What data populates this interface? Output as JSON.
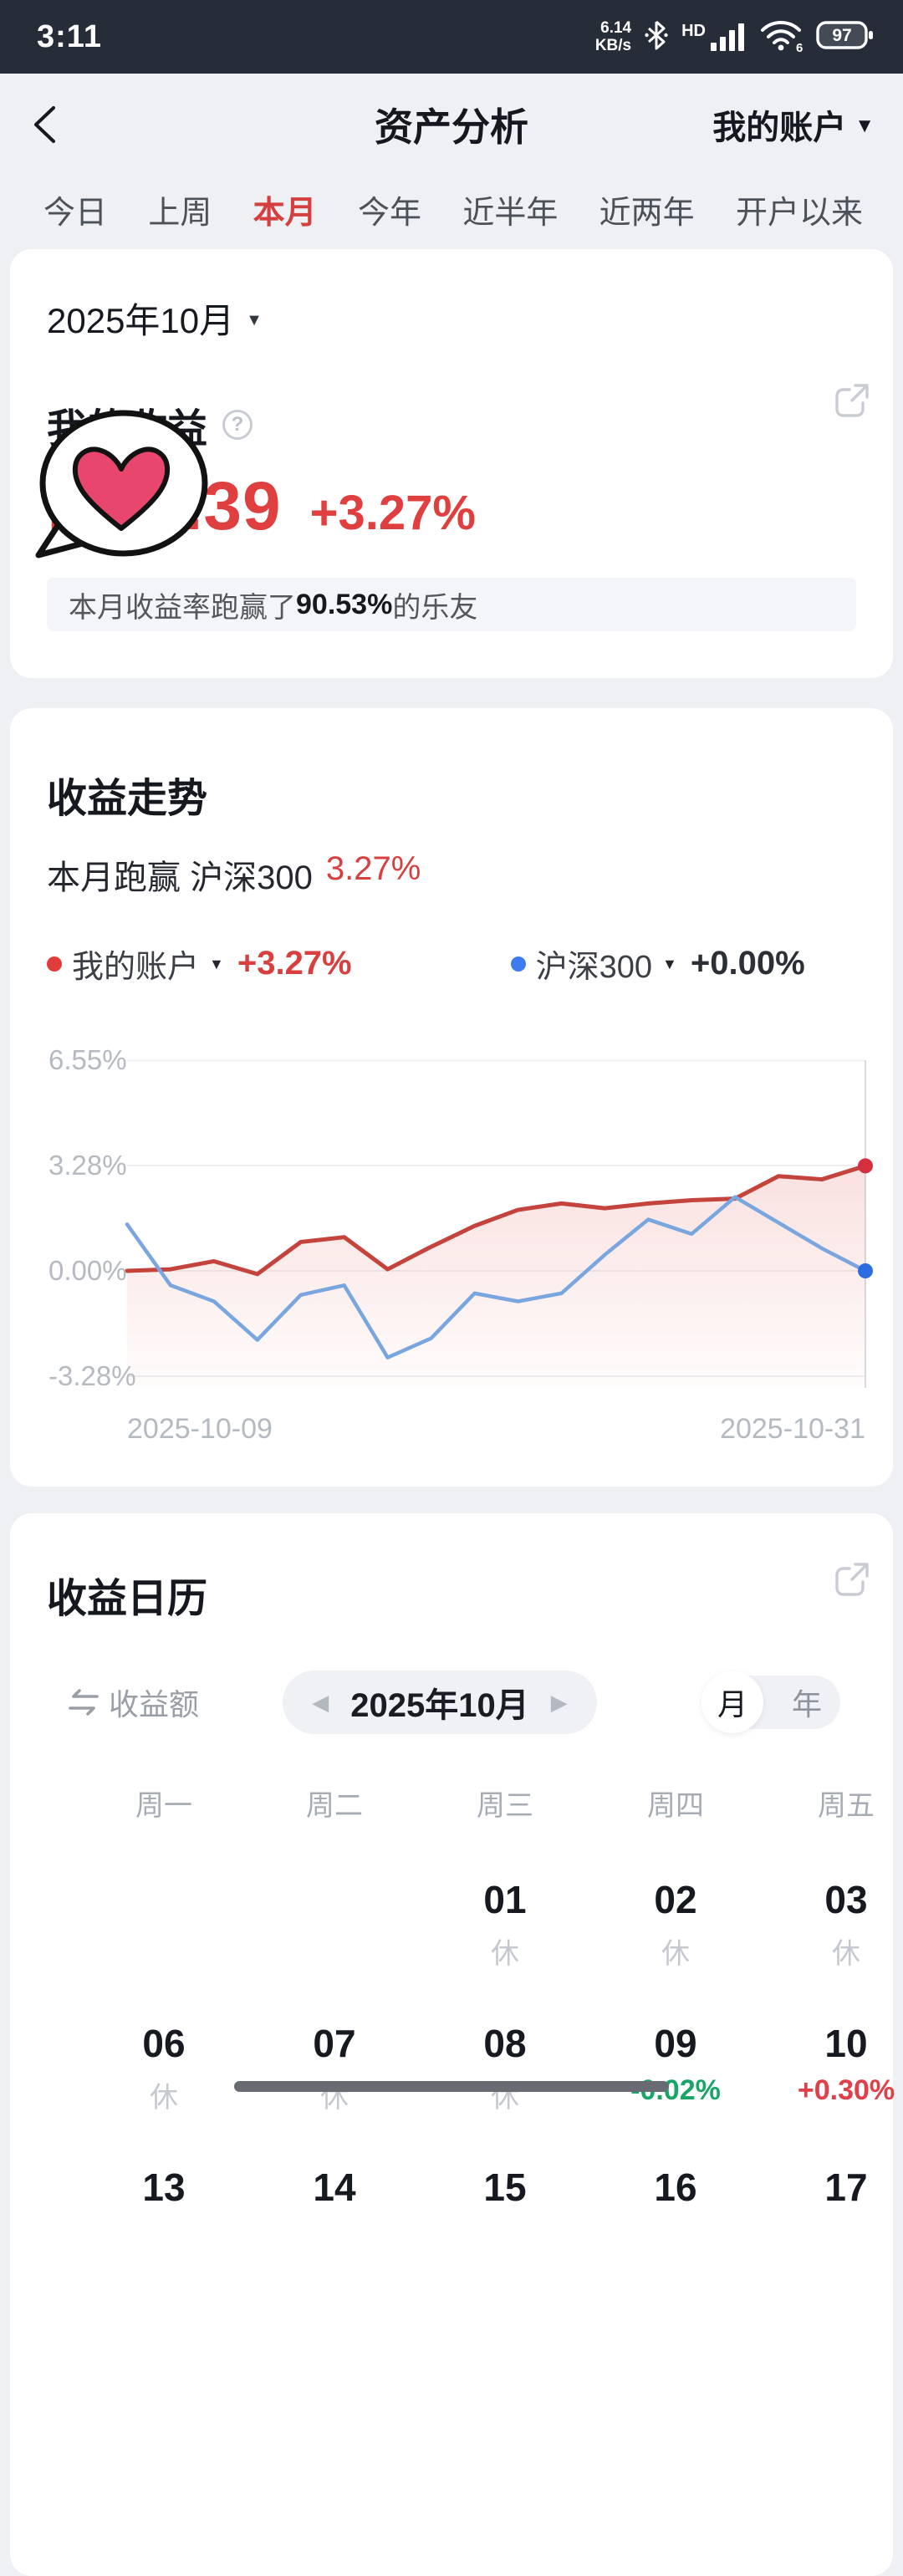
{
  "status_bar": {
    "time": "3:11",
    "net_speed_value": "6.14",
    "net_speed_unit": "KB/s",
    "hd_label": "HD",
    "wifi_badge": "6",
    "battery_percent": "97"
  },
  "header": {
    "title": "资产分析",
    "account_selector": "我的账户"
  },
  "tabs": {
    "items": [
      "今日",
      "上周",
      "本月",
      "今年",
      "近半年",
      "近两年",
      "开户以来"
    ],
    "active_index": 2
  },
  "profit_card": {
    "month_selector": "2025年10月",
    "section_title": "我的收益",
    "amount_visible": ",708.39",
    "change_percent": "+3.27%",
    "beat_banner": {
      "prefix": "本月收益率跑赢了",
      "highlight": "90.53%",
      "suffix": "的乐友"
    },
    "sticker": "heart-speech-bubble"
  },
  "trend_card": {
    "title": "收益走势",
    "subtitle_prefix": "本月跑赢 沪深300",
    "subtitle_value": "3.27%",
    "legend": [
      {
        "name": "我的账户",
        "value": "+3.27%",
        "color": "#e03c3c",
        "value_style": "red"
      },
      {
        "name": "沪深300",
        "value": "+0.00%",
        "color": "#3d7bee",
        "value_style": "dark"
      }
    ]
  },
  "chart_data": {
    "type": "line",
    "title": "收益走势 (cumulative return %, 2025-10)",
    "x_ticks": [
      "2025-10-09",
      "2025-10-31"
    ],
    "y_ticks": [
      {
        "label": "6.55%",
        "value": 6.55
      },
      {
        "label": "3.28%",
        "value": 3.28
      },
      {
        "label": "0.00%",
        "value": 0.0
      },
      {
        "label": "-3.28%",
        "value": -3.28
      }
    ],
    "ylim": [
      -3.9,
      7.2
    ],
    "grid": true,
    "legend_position": "top",
    "series": [
      {
        "name": "我的账户",
        "color": "#c5433d",
        "dot_color": "#d5303e",
        "fill": true,
        "end_dot": true,
        "values": [
          0.0,
          0.05,
          0.3,
          -0.1,
          0.9,
          1.05,
          0.05,
          0.75,
          1.4,
          1.9,
          2.1,
          1.95,
          2.1,
          2.2,
          2.25,
          2.95,
          2.85,
          3.27
        ]
      },
      {
        "name": "沪深300",
        "color": "#7aa6df",
        "dot_color": "#2b6ce0",
        "fill": false,
        "end_dot": true,
        "values": [
          1.45,
          -0.45,
          -0.95,
          -2.15,
          -0.75,
          -0.45,
          -2.7,
          -2.1,
          -0.7,
          -0.95,
          -0.7,
          0.5,
          1.6,
          1.15,
          2.3,
          1.5,
          0.7,
          0.0
        ]
      }
    ]
  },
  "calendar_card": {
    "title": "收益日历",
    "metric_toggle": "收益额",
    "period_label": "2025年10月",
    "view_toggle": {
      "month": "月",
      "year": "年",
      "selected": "month"
    },
    "weekday_headers": [
      "周一",
      "周二",
      "周三",
      "周四",
      "周五"
    ],
    "weeks": [
      [
        {
          "day": "",
          "note": "",
          "type": ""
        },
        {
          "day": "",
          "note": "",
          "type": ""
        },
        {
          "day": "01",
          "note": "休",
          "type": "rest"
        },
        {
          "day": "02",
          "note": "休",
          "type": "rest"
        },
        {
          "day": "03",
          "note": "休",
          "type": "rest"
        }
      ],
      [
        {
          "day": "06",
          "note": "休",
          "type": "rest"
        },
        {
          "day": "07",
          "note": "休",
          "type": "rest"
        },
        {
          "day": "08",
          "note": "休",
          "type": "rest"
        },
        {
          "day": "09",
          "note": "-0.02%",
          "type": "down"
        },
        {
          "day": "10",
          "note": "+0.30%",
          "type": "up"
        }
      ],
      [
        {
          "day": "13",
          "note": "",
          "type": ""
        },
        {
          "day": "14",
          "note": "",
          "type": ""
        },
        {
          "day": "15",
          "note": "",
          "type": ""
        },
        {
          "day": "16",
          "note": "",
          "type": ""
        },
        {
          "day": "17",
          "note": "",
          "type": ""
        }
      ]
    ]
  },
  "colors": {
    "accent_red": "#df403f",
    "accent_blue": "#3d7bee",
    "up_red": "#df4049",
    "down_green": "#18a567",
    "page_bg": "#eef0f4",
    "statusbar_bg": "#262d39"
  }
}
